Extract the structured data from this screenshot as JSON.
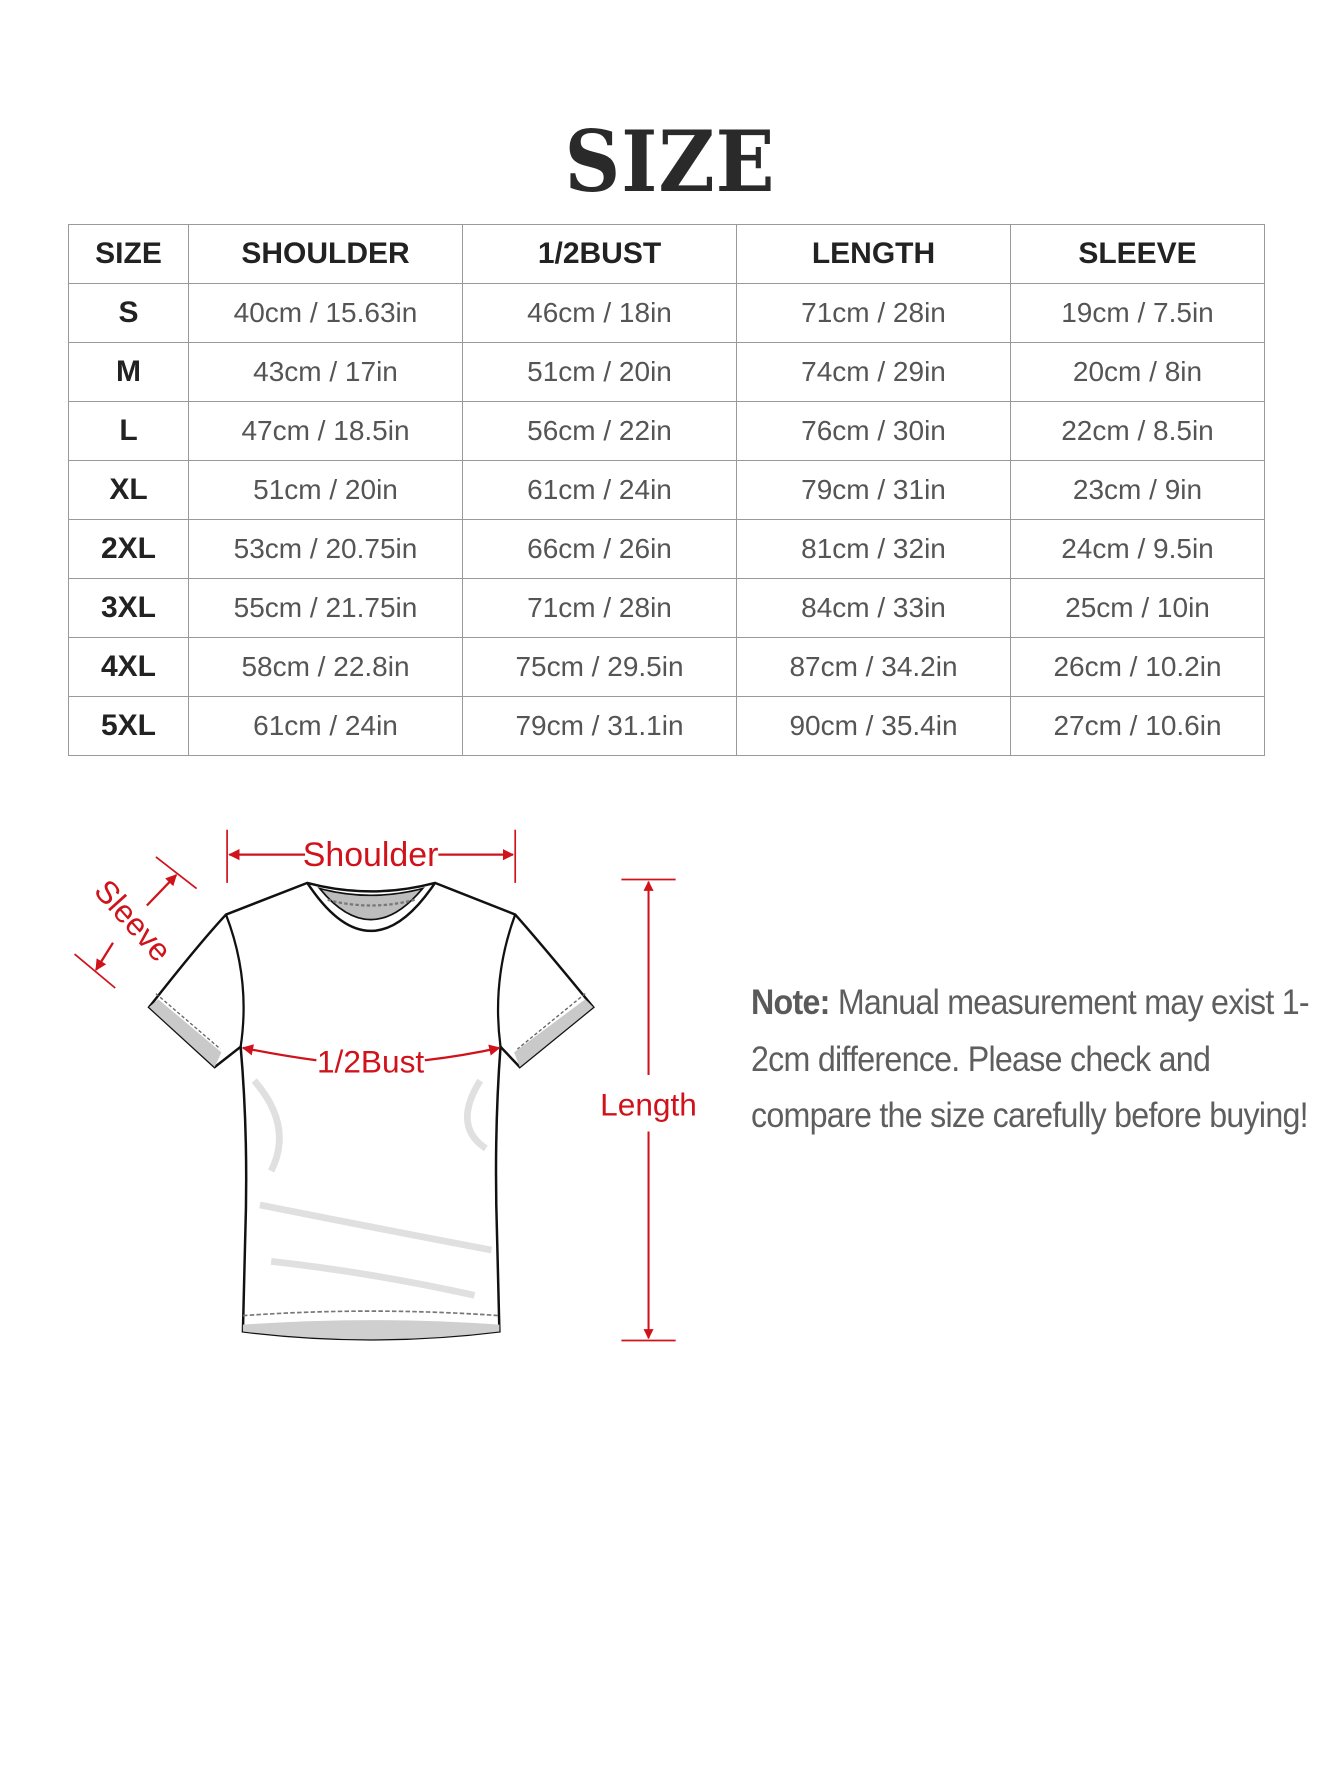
{
  "title": "SIZE",
  "table": {
    "headers": [
      "SIZE",
      "SHOULDER",
      "1/2BUST",
      "LENGTH",
      "SLEEVE"
    ],
    "rows": [
      [
        "S",
        "40cm / 15.63in",
        "46cm / 18in",
        "71cm / 28in",
        "19cm / 7.5in"
      ],
      [
        "M",
        "43cm / 17in",
        "51cm / 20in",
        "74cm / 29in",
        "20cm / 8in"
      ],
      [
        "L",
        "47cm / 18.5in",
        "56cm / 22in",
        "76cm / 30in",
        "22cm / 8.5in"
      ],
      [
        "XL",
        "51cm / 20in",
        "61cm / 24in",
        "79cm / 31in",
        "23cm / 9in"
      ],
      [
        "2XL",
        "53cm / 20.75in",
        "66cm / 26in",
        "81cm / 32in",
        "24cm / 9.5in"
      ],
      [
        "3XL",
        "55cm / 21.75in",
        "71cm / 28in",
        "84cm / 33in",
        "25cm / 10in"
      ],
      [
        "4XL",
        "58cm / 22.8in",
        "75cm / 29.5in",
        "87cm / 34.2in",
        "26cm / 10.2in"
      ],
      [
        "5XL",
        "61cm / 24in",
        "79cm / 31.1in",
        "90cm / 35.4in",
        "27cm / 10.6in"
      ]
    ]
  },
  "diagram": {
    "shoulder_label": "Shoulder",
    "sleeve_label": "Sleeve",
    "bust_label": "1/2Bust",
    "length_label": "Length",
    "accent_color": "#d0121b"
  },
  "note": {
    "label": "Note:",
    "text": " Manual measurement may exist 1-2cm difference. Please check and compare the size carefully before buying!"
  }
}
